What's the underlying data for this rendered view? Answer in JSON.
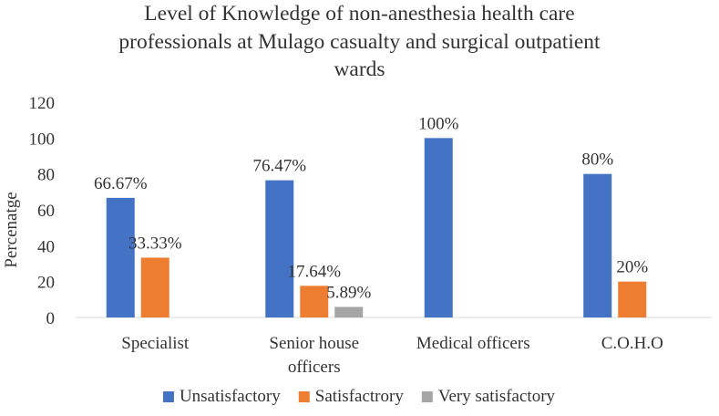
{
  "chart_data": {
    "type": "bar",
    "title_lines": [
      "Level of Knowledge of non-anesthesia health care",
      "professionals at Mulago casualty and surgical outpatient",
      "wards"
    ],
    "ylabel": "Percenatge",
    "xlabel": "",
    "ylim": [
      0,
      120
    ],
    "yticks": [
      0,
      20,
      40,
      60,
      80,
      100,
      120
    ],
    "grid": false,
    "legend_position": "bottom",
    "categories": [
      [
        "Specialist"
      ],
      [
        "Senior house",
        "officers"
      ],
      [
        "Medical officers"
      ],
      [
        "C.O.H.O"
      ]
    ],
    "series": [
      {
        "name": "Unsatisfactory",
        "color": "#4472C4",
        "values": [
          66.67,
          76.47,
          100,
          80
        ],
        "labels": [
          "66.67%",
          "76.47%",
          "100%",
          "80%"
        ]
      },
      {
        "name": "Satisfactrory",
        "color": "#ED7D31",
        "values": [
          33.33,
          17.64,
          null,
          20
        ],
        "labels": [
          "33.33%",
          "17.64%",
          "",
          "20%"
        ]
      },
      {
        "name": "Very satisfactory",
        "color": "#A5A5A5",
        "values": [
          null,
          5.89,
          null,
          null
        ],
        "labels": [
          "",
          "5.89%",
          "",
          ""
        ]
      }
    ]
  }
}
